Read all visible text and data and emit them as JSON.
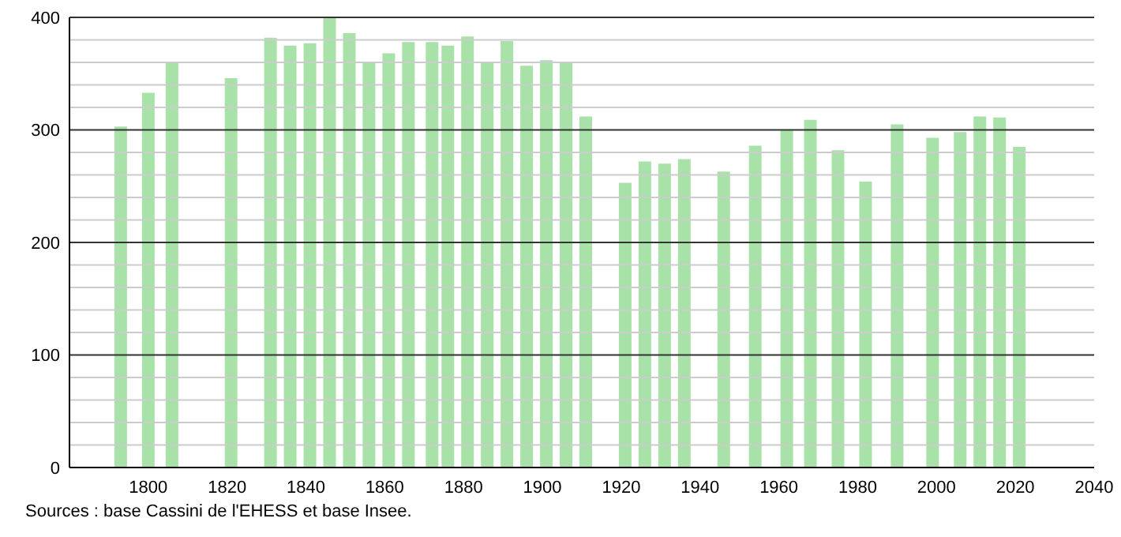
{
  "chart_data": {
    "type": "bar",
    "x": [
      1793,
      1800,
      1806,
      1821,
      1831,
      1836,
      1841,
      1846,
      1851,
      1856,
      1861,
      1866,
      1872,
      1876,
      1881,
      1886,
      1891,
      1896,
      1901,
      1906,
      1911,
      1921,
      1926,
      1931,
      1936,
      1946,
      1954,
      1962,
      1968,
      1975,
      1982,
      1990,
      1999,
      2006,
      2011,
      2016,
      2021
    ],
    "values": [
      303,
      333,
      360,
      346,
      382,
      375,
      377,
      400,
      386,
      360,
      368,
      378,
      378,
      375,
      383,
      360,
      379,
      357,
      362,
      360,
      312,
      253,
      272,
      270,
      274,
      263,
      286,
      300,
      309,
      282,
      254,
      305,
      293,
      298,
      312,
      311,
      285
    ],
    "color": "#a8e2a8",
    "xlim": [
      1780,
      2040
    ],
    "xticks": [
      1800,
      1820,
      1840,
      1860,
      1880,
      1900,
      1920,
      1940,
      1960,
      1980,
      2000,
      2020,
      2040
    ],
    "ylim": [
      0,
      400
    ],
    "yticks": [
      0,
      {
        "value": 20,
        "label": null
      },
      {
        "value": 40,
        "label": null
      },
      {
        "value": 60,
        "label": null
      },
      {
        "value": 80,
        "label": null
      },
      100,
      {
        "value": 120,
        "label": null
      },
      {
        "value": 140,
        "label": null
      },
      {
        "value": 160,
        "label": null
      },
      {
        "value": 180,
        "label": null
      },
      200,
      {
        "value": 220,
        "label": null
      },
      {
        "value": 240,
        "label": null
      },
      {
        "value": 260,
        "label": null
      },
      {
        "value": 280,
        "label": null
      },
      300,
      {
        "value": 320,
        "label": null
      },
      {
        "value": 340,
        "label": null
      },
      {
        "value": 360,
        "label": null
      },
      {
        "value": 380,
        "label": null
      },
      400
    ],
    "grid": "y",
    "annotations": [
      "Sources : base Cassini de l'EHESS et base Insee."
    ]
  }
}
